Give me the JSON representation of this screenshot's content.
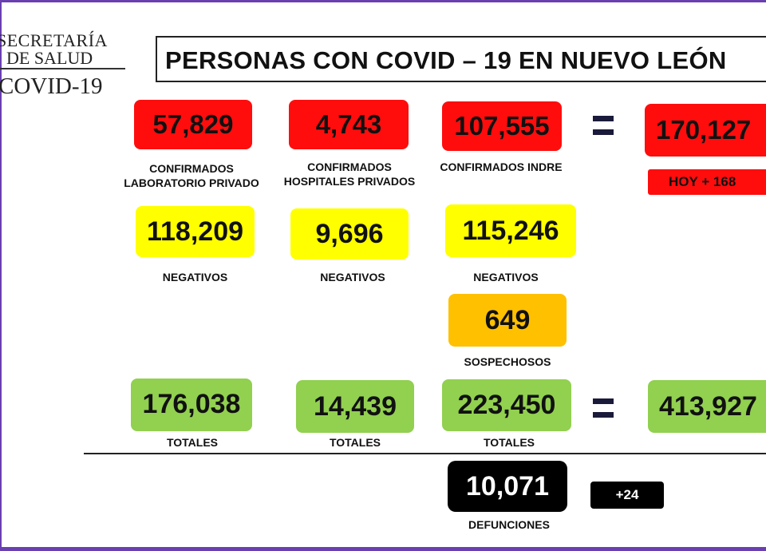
{
  "logo": {
    "line1": "SECRETARÍA",
    "line2": "DE SALUD",
    "line3": "COVID-19"
  },
  "title": "PERSONAS CON COVID – 19 EN NUEVO LEÓN",
  "confirmed": {
    "private_lab": {
      "value": "57,829",
      "label_1": "CONFIRMADOS",
      "label_2": "LABORATORIO PRIVADO"
    },
    "private_hospitals": {
      "value": "4,743",
      "label_1": "CONFIRMADOS",
      "label_2": "HOSPITALES PRIVADOS"
    },
    "indre": {
      "value": "107,555",
      "label": "CONFIRMADOS INDRE"
    },
    "total": {
      "value": "170,127",
      "today": "HOY + 168"
    }
  },
  "negatives": {
    "private_lab": {
      "value": "118,209",
      "label": "NEGATIVOS"
    },
    "private_hospitals": {
      "value": "9,696",
      "label": "NEGATIVOS"
    },
    "indre": {
      "value": "115,246",
      "label": "NEGATIVOS"
    }
  },
  "suspects": {
    "value": "649",
    "label": "SOSPECHOSOS"
  },
  "totals": {
    "private_lab": {
      "value": "176,038",
      "label": "TOTALES"
    },
    "private_hospitals": {
      "value": "14,439",
      "label": "TOTALES"
    },
    "indre": {
      "value": "223,450",
      "label": "TOTALES"
    },
    "grand_total": {
      "value": "413,927"
    }
  },
  "deaths": {
    "value": "10,071",
    "label": "DEFUNCIONES",
    "today": "+24"
  },
  "colors": {
    "confirmed": "#ff0d0d",
    "negative": "#ffff00",
    "suspect": "#ffc000",
    "total": "#92d050",
    "deaths": "#000000",
    "frame": "#6a3fb0"
  }
}
